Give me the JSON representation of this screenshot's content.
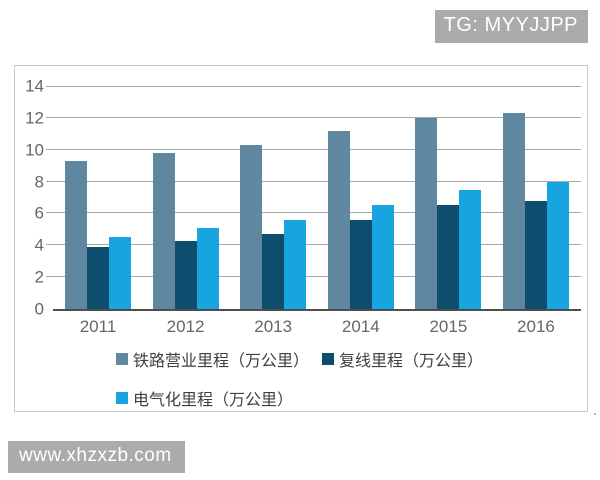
{
  "watermarks": {
    "top": "TG: MYYJJPP",
    "bottom": "www.xhzxzb.com"
  },
  "stray_text": ".",
  "chart_data": {
    "type": "bar",
    "categories": [
      "2011",
      "2012",
      "2013",
      "2014",
      "2015",
      "2016"
    ],
    "series": [
      {
        "name": "铁路营业里程（万公里）",
        "color": "#5f87a0",
        "values": [
          9.3,
          9.8,
          10.3,
          11.2,
          12.0,
          12.3
        ]
      },
      {
        "name": "复线里程（万公里）",
        "color": "#0d4e6e",
        "values": [
          3.9,
          4.3,
          4.7,
          5.6,
          6.5,
          6.8
        ]
      },
      {
        "name": "电气化里程（万公里）",
        "color": "#18a4de",
        "values": [
          4.5,
          5.1,
          5.6,
          6.5,
          7.5,
          8.0
        ]
      }
    ],
    "ylim": [
      0,
      14
    ],
    "yticks": [
      0,
      2,
      4,
      6,
      8,
      10,
      12,
      14
    ],
    "grid": true,
    "legend_position": "bottom"
  },
  "colors": {
    "watermark_bg": "#ababab",
    "watermark_text": "#ffffff",
    "gridline": "#a8a8a8",
    "axis_line": "#4d4d4d",
    "tick_label": "#666666",
    "legend_text": "#3f3f3f",
    "frame_border": "#c7c7c7",
    "background": "#ffffff"
  }
}
